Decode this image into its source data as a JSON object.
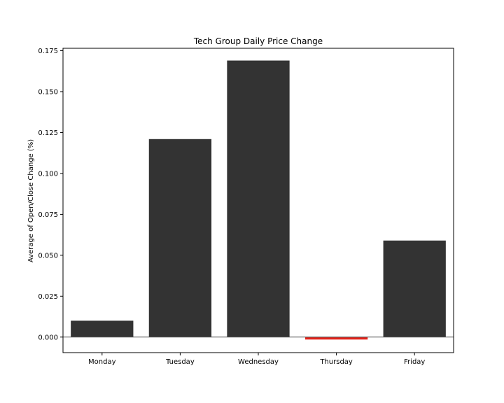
{
  "chart_data": {
    "type": "bar",
    "title": "Tech Group Daily Price Change",
    "xlabel": "",
    "ylabel": "Average of Open/Close Change (%)",
    "categories": [
      "Monday",
      "Tuesday",
      "Wednesday",
      "Thursday",
      "Friday"
    ],
    "values": [
      0.01,
      0.121,
      0.169,
      -0.0015,
      0.059
    ],
    "ylim": [
      -0.0095,
      0.1765
    ],
    "yticks": [
      "0.000",
      "0.025",
      "0.050",
      "0.075",
      "0.100",
      "0.125",
      "0.150",
      "0.175"
    ],
    "ytick_values": [
      0,
      0.025,
      0.05,
      0.075,
      0.1,
      0.125,
      0.15,
      0.175
    ],
    "grid": false,
    "zero_line": true,
    "colors": {
      "positive": "#333333",
      "negative": "#e2231a",
      "axis": "#000000",
      "background": "#ffffff"
    }
  }
}
